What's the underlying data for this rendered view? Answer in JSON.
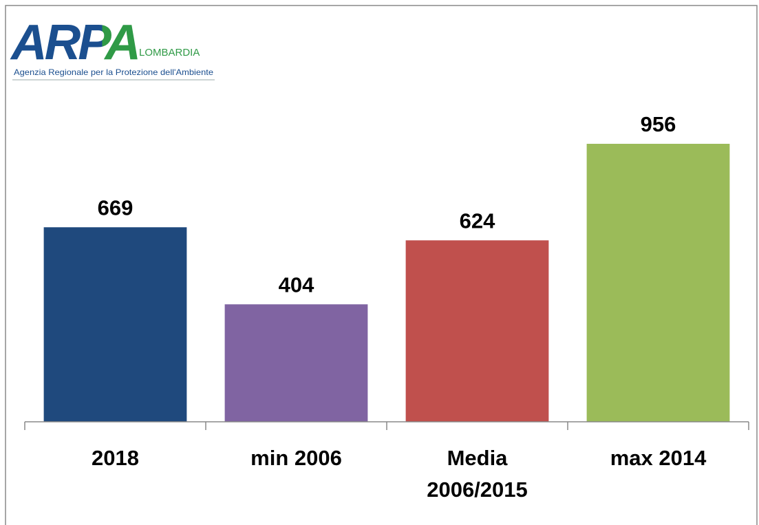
{
  "logo": {
    "name": "ARPA",
    "region": "LOMBARDIA",
    "tagline": "Agenzia Regionale per la Protezione dell'Ambiente"
  },
  "chart_data": {
    "type": "bar",
    "categories": [
      "2018",
      "min 2006",
      "Media 2006/2015",
      "max 2014"
    ],
    "values": [
      669,
      404,
      624,
      956
    ],
    "colors": [
      "#1f497d",
      "#8064a2",
      "#c0504d",
      "#9bbb59"
    ]
  }
}
